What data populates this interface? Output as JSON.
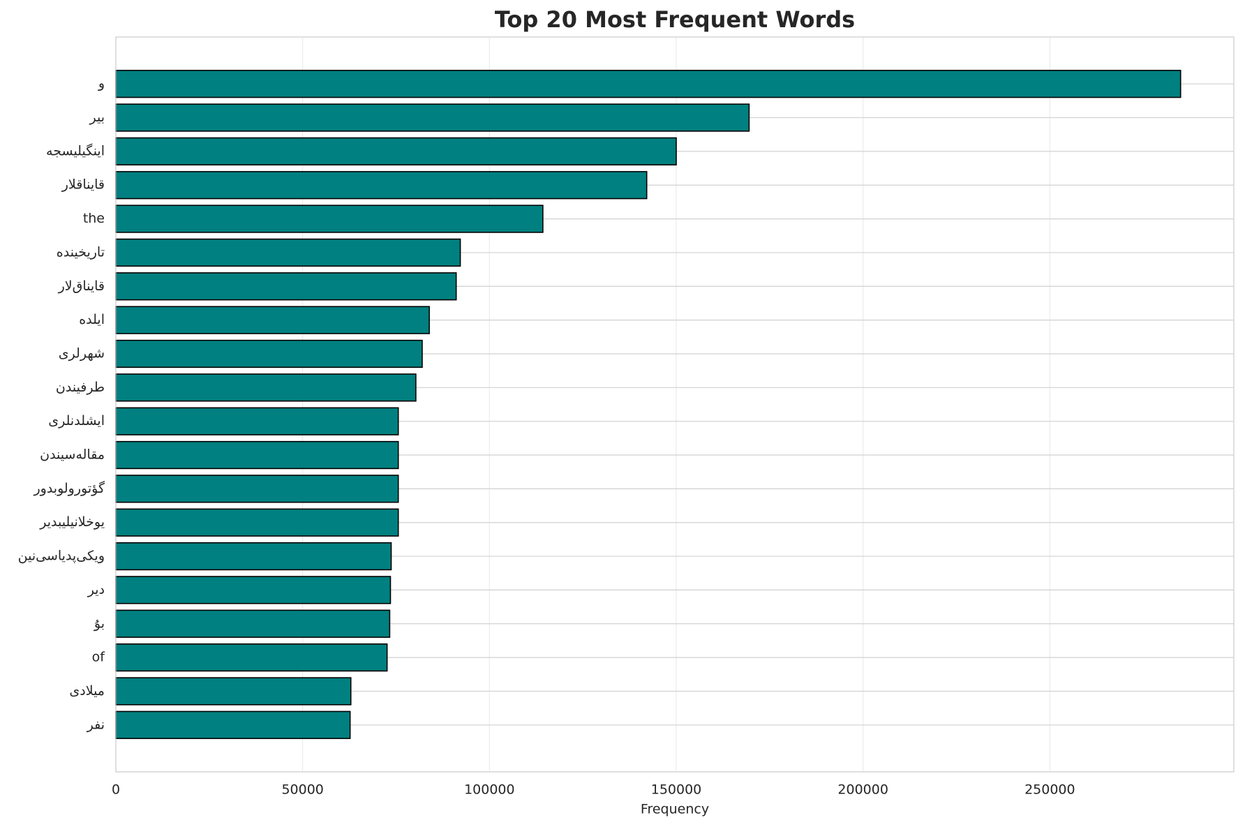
{
  "chart_data": {
    "type": "bar",
    "orientation": "horizontal",
    "title": "Top 20 Most Frequent Words",
    "xlabel": "Frequency",
    "categories": [
      "و",
      "بیر",
      "اینگیلیسجه",
      "قایناقلار",
      "the",
      "تاریخینده",
      "قایناق‌لار",
      "ایلده",
      "شهرلری",
      "طرفیندن",
      "ایشلدنلری",
      "مقاله‌سیندن",
      "گؤتورولوبدور",
      "یوخلانیلیبدیر",
      "ویکی‌پدیاسی‌نین",
      "دیر",
      "بۇ",
      "of",
      "میلادی",
      "نفر"
    ],
    "values": [
      285000,
      169500,
      150000,
      142100,
      114300,
      92200,
      91100,
      83900,
      82000,
      80300,
      75600,
      75600,
      75600,
      75600,
      73700,
      73500,
      73300,
      72600,
      62900,
      62700
    ],
    "color": "#008080",
    "edgecolor": "#000000",
    "xlim": [
      0,
      299250
    ],
    "xticks": [
      0,
      50000,
      100000,
      150000,
      200000,
      250000
    ],
    "grid": true
  }
}
